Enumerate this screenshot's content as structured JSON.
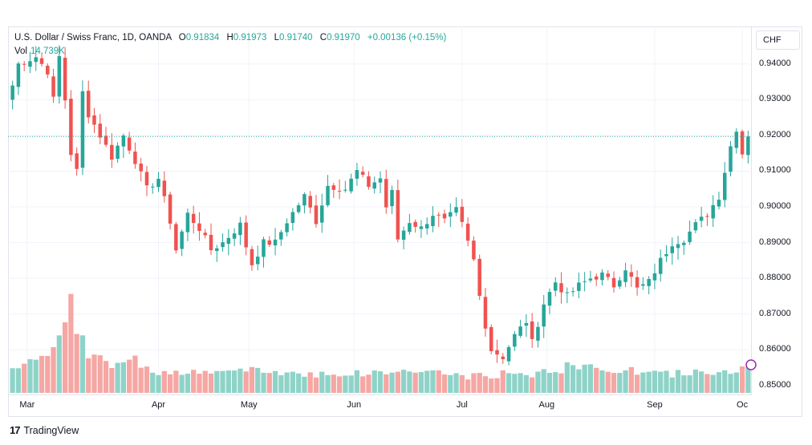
{
  "header": {
    "symbol": "U.S. Dollar / Swiss Franc, 1D, OANDA",
    "o_label": "O",
    "o_value": "0.91834",
    "h_label": "H",
    "h_value": "0.91973",
    "l_label": "L",
    "l_value": "0.91740",
    "c_label": "C",
    "c_value": "0.91970",
    "change": "+0.00136 (+0.15%)",
    "vol_label": "Vol",
    "vol_value": "14.739K"
  },
  "currency_button": "CHF",
  "brand": {
    "icon": "tradingview-logo-icon",
    "logo_text": "17",
    "name": "TradingView"
  },
  "colors": {
    "up": "#26a69a",
    "down": "#ef5350",
    "up_vol": "#8fd3c8",
    "down_vol": "#f5a7a4",
    "grid": "#f0f3fa",
    "priceline": "#26a69a"
  },
  "chart_data": {
    "type": "candlestick",
    "price_line": 0.9197,
    "y_ticks": [
      "0.94000",
      "0.93000",
      "0.92000",
      "0.91000",
      "0.90000",
      "0.89000",
      "0.88000",
      "0.87000",
      "0.86000",
      "0.85000"
    ],
    "ylim": [
      0.8475,
      0.9505
    ],
    "x_ticks": [
      "Mar",
      "Apr",
      "May",
      "Jun",
      "Jul",
      "Aug",
      "Sep",
      "Oc"
    ],
    "x_tick_index": [
      2.5,
      25,
      40.5,
      58.5,
      77,
      91.5,
      110,
      125
    ],
    "n_bars": 127,
    "anchors": [
      [
        0,
        0.934
      ],
      [
        1,
        0.94
      ],
      [
        4,
        0.942
      ],
      [
        6,
        0.938
      ],
      [
        7,
        0.93
      ],
      [
        8,
        0.942
      ],
      [
        9,
        0.93
      ],
      [
        10,
        0.915
      ],
      [
        11,
        0.91
      ],
      [
        12,
        0.932
      ],
      [
        13,
        0.926
      ],
      [
        15,
        0.92
      ],
      [
        17,
        0.914
      ],
      [
        19,
        0.92
      ],
      [
        21,
        0.913
      ],
      [
        23,
        0.905
      ],
      [
        25,
        0.908
      ],
      [
        27,
        0.896
      ],
      [
        28,
        0.888
      ],
      [
        30,
        0.898
      ],
      [
        32,
        0.894
      ],
      [
        34,
        0.888
      ],
      [
        36,
        0.89
      ],
      [
        39,
        0.895
      ],
      [
        40,
        0.889
      ],
      [
        41,
        0.884
      ],
      [
        43,
        0.89
      ],
      [
        45,
        0.89
      ],
      [
        47,
        0.896
      ],
      [
        50,
        0.903
      ],
      [
        52,
        0.896
      ],
      [
        54,
        0.906
      ],
      [
        57,
        0.905
      ],
      [
        59,
        0.91
      ],
      [
        61,
        0.906
      ],
      [
        63,
        0.908
      ],
      [
        64,
        0.9
      ],
      [
        65,
        0.904
      ],
      [
        66,
        0.891
      ],
      [
        68,
        0.896
      ],
      [
        70,
        0.894
      ],
      [
        72,
        0.898
      ],
      [
        74,
        0.896
      ],
      [
        76,
        0.899
      ],
      [
        77,
        0.895
      ],
      [
        79,
        0.885
      ],
      [
        80,
        0.875
      ],
      [
        81,
        0.867
      ],
      [
        82,
        0.86
      ],
      [
        84,
        0.858
      ],
      [
        86,
        0.864
      ],
      [
        88,
        0.868
      ],
      [
        89,
        0.862
      ],
      [
        91,
        0.873
      ],
      [
        93,
        0.879
      ],
      [
        95,
        0.875
      ],
      [
        97,
        0.878
      ],
      [
        99,
        0.88
      ],
      [
        101,
        0.881
      ],
      [
        103,
        0.878
      ],
      [
        105,
        0.883
      ],
      [
        107,
        0.877
      ],
      [
        109,
        0.879
      ],
      [
        111,
        0.885
      ],
      [
        113,
        0.89
      ],
      [
        115,
        0.891
      ],
      [
        117,
        0.895
      ],
      [
        119,
        0.898
      ],
      [
        121,
        0.903
      ],
      [
        122,
        0.91
      ],
      [
        123,
        0.917
      ],
      [
        124,
        0.922
      ],
      [
        125,
        0.915
      ],
      [
        126,
        0.9197
      ]
    ],
    "volume_anchors": [
      [
        0,
        9
      ],
      [
        5,
        10
      ],
      [
        7,
        15
      ],
      [
        9,
        22
      ],
      [
        10,
        26
      ],
      [
        11,
        17
      ],
      [
        13,
        13
      ],
      [
        15,
        12
      ],
      [
        17,
        9
      ],
      [
        21,
        10
      ],
      [
        24,
        7
      ],
      [
        30,
        6
      ],
      [
        40,
        7
      ],
      [
        50,
        6
      ],
      [
        60,
        6
      ],
      [
        70,
        7
      ],
      [
        78,
        5
      ],
      [
        85,
        6
      ],
      [
        90,
        6
      ],
      [
        95,
        8
      ],
      [
        100,
        8
      ],
      [
        105,
        7
      ],
      [
        110,
        6
      ],
      [
        115,
        6
      ],
      [
        120,
        7
      ],
      [
        126,
        7
      ]
    ],
    "volume_max": 30
  }
}
